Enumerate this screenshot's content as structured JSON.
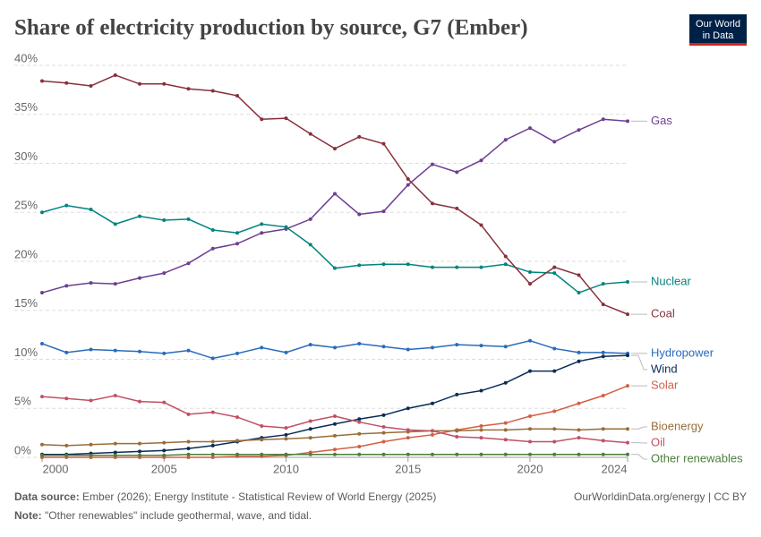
{
  "chart_data": {
    "type": "line",
    "title": "Share of electricity production by source, G7 (Ember)",
    "x": [
      2000,
      2001,
      2002,
      2003,
      2004,
      2005,
      2006,
      2007,
      2008,
      2009,
      2010,
      2011,
      2012,
      2013,
      2014,
      2015,
      2016,
      2017,
      2018,
      2019,
      2020,
      2021,
      2022,
      2023,
      2024
    ],
    "xlim": [
      2000,
      2024
    ],
    "xticks": [
      2000,
      2005,
      2010,
      2015,
      2020,
      2024
    ],
    "ylim": [
      0,
      40
    ],
    "yticks": [
      {
        "value": 0,
        "label": "0%"
      },
      {
        "value": 5,
        "label": "5%"
      },
      {
        "value": 10,
        "label": "10%"
      },
      {
        "value": 15,
        "label": "15%"
      },
      {
        "value": 20,
        "label": "20%"
      },
      {
        "value": 25,
        "label": "25%"
      },
      {
        "value": 30,
        "label": "30%"
      },
      {
        "value": 35,
        "label": "35%"
      },
      {
        "value": 40,
        "label": "40%"
      }
    ],
    "grid": true,
    "series": [
      {
        "name": "Gas",
        "color": "#6d3e91",
        "values": [
          16.8,
          17.5,
          17.8,
          17.7,
          18.3,
          18.8,
          19.8,
          21.3,
          21.8,
          22.9,
          23.3,
          24.3,
          26.9,
          24.8,
          25.1,
          27.8,
          29.9,
          29.1,
          30.3,
          32.4,
          33.6,
          32.2,
          33.4,
          34.5,
          34.3
        ]
      },
      {
        "name": "Nuclear",
        "color": "#00847e",
        "values": [
          25.0,
          25.7,
          25.3,
          23.8,
          24.6,
          24.2,
          24.3,
          23.2,
          22.9,
          23.8,
          23.5,
          21.7,
          19.3,
          19.6,
          19.7,
          19.7,
          19.4,
          19.4,
          19.4,
          19.7,
          18.9,
          18.8,
          16.8,
          17.7,
          17.9
        ]
      },
      {
        "name": "Coal",
        "color": "#883039",
        "values": [
          38.4,
          38.2,
          37.9,
          39.0,
          38.1,
          38.1,
          37.6,
          37.4,
          36.9,
          34.5,
          34.6,
          33.0,
          31.5,
          32.7,
          32.0,
          28.4,
          25.9,
          25.4,
          23.7,
          20.5,
          17.7,
          19.4,
          18.6,
          15.6,
          14.6
        ]
      },
      {
        "name": "Hydropower",
        "color": "#286bbb",
        "values": [
          11.6,
          10.7,
          11.0,
          10.9,
          10.8,
          10.6,
          10.9,
          10.1,
          10.6,
          11.2,
          10.7,
          11.5,
          11.2,
          11.6,
          11.3,
          11.0,
          11.2,
          11.5,
          11.4,
          11.3,
          11.9,
          11.1,
          10.7,
          10.7,
          10.6
        ]
      },
      {
        "name": "Wind",
        "color": "#0b2c5a",
        "values": [
          0.3,
          0.3,
          0.4,
          0.5,
          0.6,
          0.7,
          0.9,
          1.2,
          1.6,
          2.0,
          2.3,
          2.9,
          3.4,
          3.9,
          4.3,
          5.0,
          5.5,
          6.4,
          6.8,
          7.6,
          8.8,
          8.8,
          9.8,
          10.3,
          10.4
        ]
      },
      {
        "name": "Solar",
        "color": "#d35f45",
        "values": [
          0,
          0,
          0,
          0,
          0,
          0,
          0,
          0,
          0.1,
          0.1,
          0.2,
          0.5,
          0.8,
          1.1,
          1.6,
          2.0,
          2.3,
          2.8,
          3.2,
          3.5,
          4.2,
          4.7,
          5.5,
          6.3,
          7.3
        ]
      },
      {
        "name": "Bioenergy",
        "color": "#996d39",
        "values": [
          1.3,
          1.2,
          1.3,
          1.4,
          1.4,
          1.5,
          1.6,
          1.6,
          1.7,
          1.8,
          1.9,
          2.0,
          2.2,
          2.4,
          2.5,
          2.6,
          2.7,
          2.7,
          2.8,
          2.8,
          2.9,
          2.9,
          2.8,
          2.9,
          2.9
        ]
      },
      {
        "name": "Oil",
        "color": "#c15065",
        "values": [
          6.2,
          6.0,
          5.8,
          6.3,
          5.7,
          5.6,
          4.4,
          4.6,
          4.1,
          3.2,
          3.0,
          3.7,
          4.2,
          3.6,
          3.1,
          2.8,
          2.7,
          2.1,
          2.0,
          1.8,
          1.6,
          1.6,
          2.0,
          1.7,
          1.5
        ]
      },
      {
        "name": "Other renewables",
        "color": "#4c7f3a",
        "values": [
          0.2,
          0.2,
          0.2,
          0.2,
          0.2,
          0.2,
          0.3,
          0.3,
          0.3,
          0.3,
          0.3,
          0.3,
          0.3,
          0.3,
          0.3,
          0.3,
          0.3,
          0.3,
          0.3,
          0.3,
          0.3,
          0.3,
          0.3,
          0.3,
          0.3
        ]
      }
    ]
  },
  "logo": {
    "line1": "Our World",
    "line2": "in Data"
  },
  "footer": {
    "source_label": "Data source:",
    "source_text": "Ember (2026); Energy Institute - Statistical Review of World Energy (2025)",
    "note_label": "Note:",
    "note_text": "\"Other renewables\" include geothermal, wave, and tidal.",
    "url": "OurWorldinData.org/energy | CC BY"
  }
}
